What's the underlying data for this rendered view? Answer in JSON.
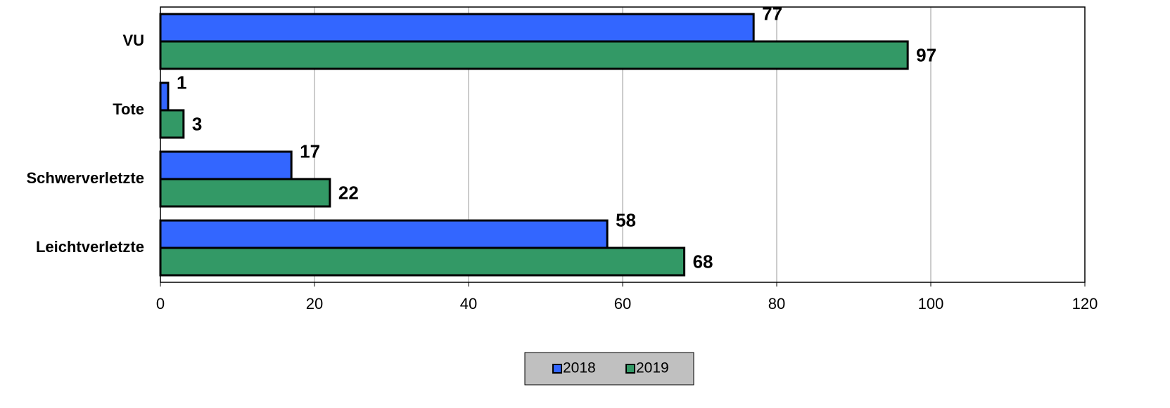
{
  "chart_data": {
    "type": "bar",
    "categories": [
      "VU",
      "Tote",
      "Schwerverletzte",
      "Leichtverletzte"
    ],
    "series": [
      {
        "name": "2018",
        "color": "#3366ff",
        "values": [
          77,
          1,
          17,
          58
        ]
      },
      {
        "name": "2019",
        "color": "#339966",
        "values": [
          97,
          3,
          22,
          68
        ]
      }
    ],
    "xlim": [
      0,
      120
    ],
    "xticks": [
      0,
      20,
      40,
      60,
      80,
      100,
      120
    ],
    "grid": true,
    "legend": "bottom"
  }
}
